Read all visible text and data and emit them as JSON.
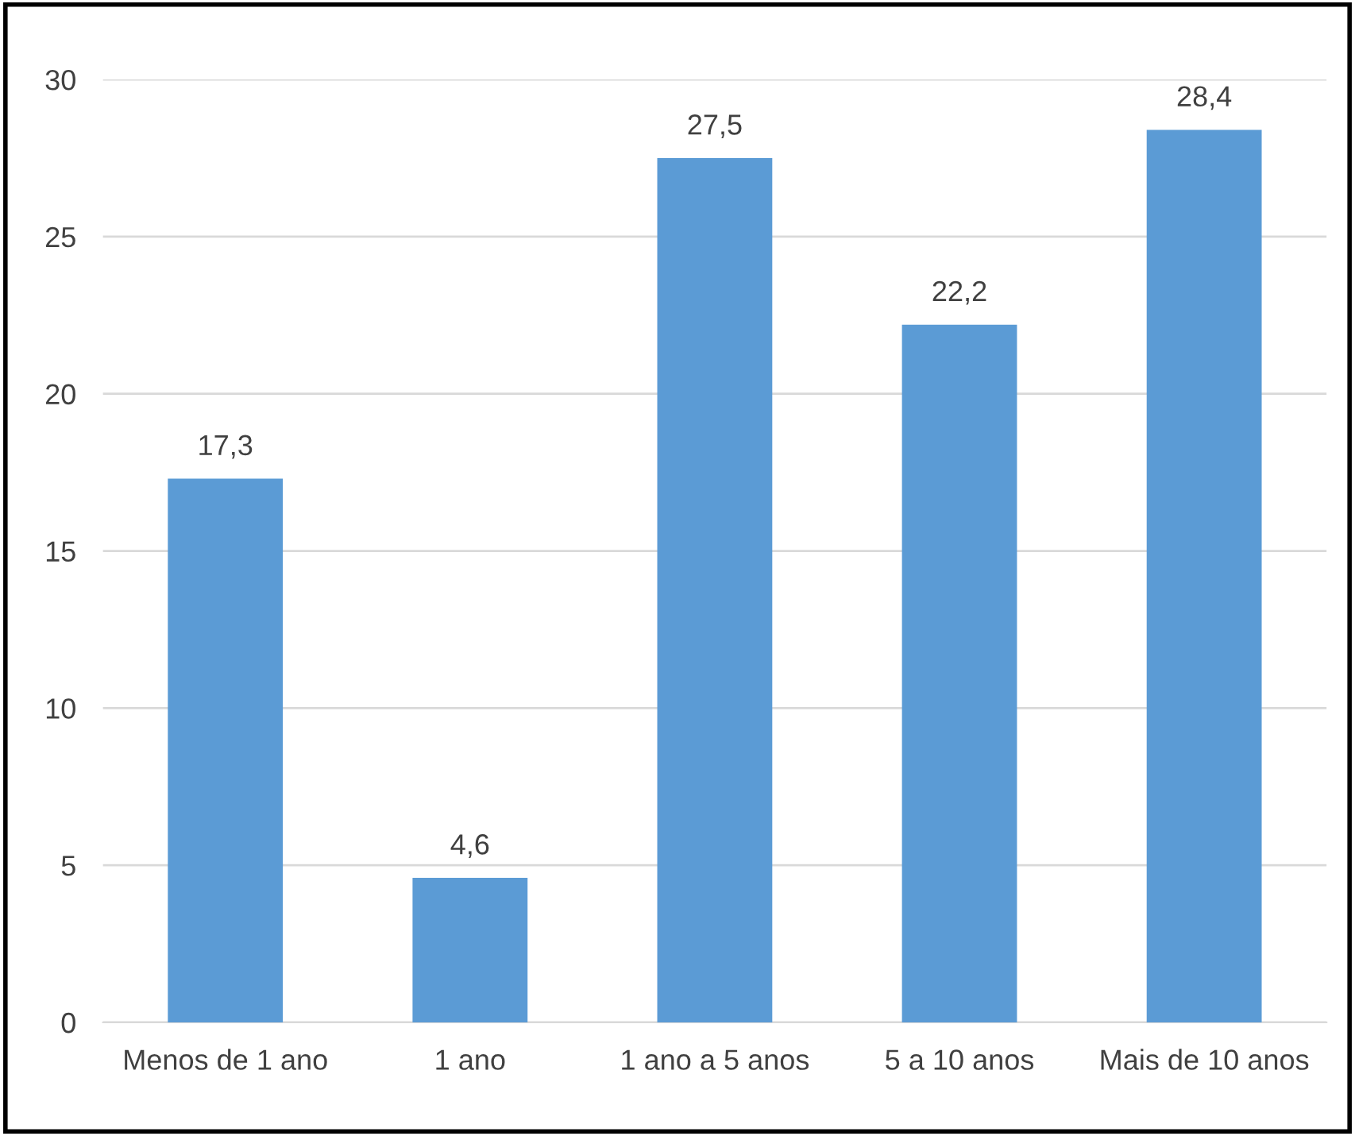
{
  "chart_data": {
    "type": "bar",
    "categories": [
      "Menos de 1 ano",
      "1 ano",
      "1 ano a 5 anos",
      "5 a 10 anos",
      "Mais de 10 anos"
    ],
    "values": [
      17.3,
      4.6,
      27.5,
      22.2,
      28.4
    ],
    "value_labels": [
      "17,3",
      "4,6",
      "27,5",
      "22,2",
      "28,4"
    ],
    "color": "#5b9bd5",
    "ylim": [
      0,
      30
    ],
    "yticks": [
      0,
      5,
      10,
      15,
      20,
      25,
      30
    ],
    "grid": "y"
  }
}
